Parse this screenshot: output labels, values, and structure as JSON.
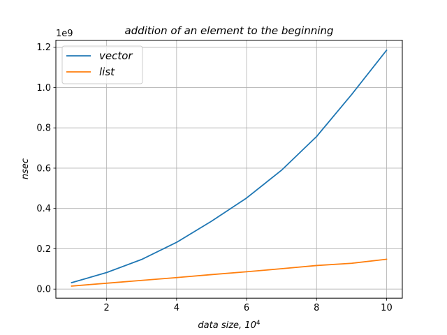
{
  "chart_data": {
    "type": "line",
    "title": "addition of an element to the beginning",
    "xlabel": "data size, 10",
    "xlabel_exponent": "4",
    "ylabel": "nsec",
    "y_offset_label": "1e9",
    "x": [
      1,
      2,
      3,
      4,
      5,
      6,
      7,
      8,
      9,
      10
    ],
    "xlim": [
      0.55,
      10.45
    ],
    "ylim": [
      -0.045,
      1.235
    ],
    "x_ticks": [
      2,
      4,
      6,
      8,
      10
    ],
    "x_tick_labels": [
      "2",
      "4",
      "6",
      "8",
      "10"
    ],
    "y_ticks": [
      0.0,
      0.2,
      0.4,
      0.6,
      0.8,
      1.0,
      1.2
    ],
    "y_tick_labels": [
      "0.0",
      "0.2",
      "0.4",
      "0.6",
      "0.8",
      "1.0",
      "1.2"
    ],
    "grid": true,
    "legend_position": "top-left",
    "series": [
      {
        "name": "vector",
        "color": "#1f77b4",
        "values": [
          0.032,
          0.082,
          0.147,
          0.232,
          0.337,
          0.452,
          0.59,
          0.757,
          0.965,
          1.185
        ]
      },
      {
        "name": "list",
        "color": "#ff7f0e",
        "values": [
          0.015,
          0.029,
          0.043,
          0.057,
          0.072,
          0.086,
          0.101,
          0.117,
          0.128,
          0.148
        ]
      }
    ]
  }
}
